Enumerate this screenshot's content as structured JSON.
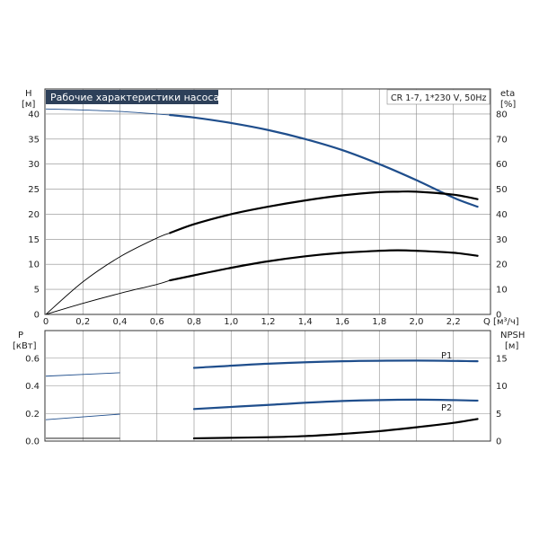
{
  "colors": {
    "blue": "#1f4e8c",
    "black": "#000000",
    "title_bg": "#2d4059",
    "grid": "#8c8c8c"
  },
  "chart_data": [
    {
      "type": "line",
      "panel": "top",
      "title": "Рабочие характеристики насоса",
      "subtitle": "CR 1-7, 1*230 V, 50Hz",
      "xlabel": "Q [м³/ч]",
      "ylabel_left": [
        "H",
        "[м]"
      ],
      "ylabel_right": [
        "eta",
        "[%]"
      ],
      "xlim": [
        0,
        2.4
      ],
      "ylim_left": [
        0,
        45
      ],
      "ylim_right": [
        0,
        90
      ],
      "x_ticks": [
        "0",
        "0,2",
        "0,4",
        "0,6",
        "0,8",
        "1,0",
        "1,2",
        "1,4",
        "1,6",
        "1,8",
        "2,0",
        "2,2",
        "Q [м³/ч]"
      ],
      "y_left_ticks": [
        "0",
        "5",
        "10",
        "15",
        "20",
        "25",
        "30",
        "35",
        "40"
      ],
      "y_right_ticks": [
        "0",
        "10",
        "20",
        "30",
        "40",
        "50",
        "60",
        "70",
        "80"
      ],
      "grid": true,
      "series": [
        {
          "axis": "left",
          "color": "blue",
          "x": [
            0,
            0.2,
            0.4,
            0.6,
            0.67,
            0.8,
            1.0,
            1.2,
            1.4,
            1.6,
            1.8,
            2.0,
            2.2,
            2.33
          ],
          "y": [
            41,
            40.8,
            40.5,
            40.0,
            39.8,
            39.3,
            38.2,
            36.8,
            35.0,
            32.8,
            30.0,
            26.8,
            23.3,
            21.5
          ],
          "solid_from": 0.67
        },
        {
          "axis": "right",
          "color": "black",
          "x": [
            0,
            0.2,
            0.4,
            0.6,
            0.67,
            0.8,
            1.0,
            1.2,
            1.4,
            1.6,
            1.8,
            1.9,
            2.0,
            2.2,
            2.33
          ],
          "y": [
            0,
            13,
            23,
            30.5,
            32.5,
            36,
            40,
            43,
            45.5,
            47.5,
            48.8,
            49.0,
            49.0,
            47.8,
            46.0
          ],
          "solid_from": 0.67
        },
        {
          "axis": "left",
          "color": "black",
          "x": [
            0,
            0.2,
            0.4,
            0.6,
            0.67,
            0.8,
            1.0,
            1.2,
            1.4,
            1.6,
            1.8,
            1.9,
            2.0,
            2.2,
            2.33
          ],
          "y": [
            0,
            2.2,
            4.2,
            6.0,
            6.8,
            7.8,
            9.3,
            10.6,
            11.6,
            12.3,
            12.7,
            12.8,
            12.7,
            12.3,
            11.7
          ],
          "solid_from": 0.67
        }
      ]
    },
    {
      "type": "line",
      "panel": "bottom",
      "ylabel_left": [
        "P",
        "[кВт]"
      ],
      "ylabel_right": [
        "NPSH",
        "[м]"
      ],
      "xlim": [
        0,
        2.4
      ],
      "ylim_left": [
        0,
        0.8
      ],
      "ylim_right": [
        0,
        20
      ],
      "y_left_ticks": [
        "0.0",
        "0.2",
        "0.4",
        "0.6"
      ],
      "y_right_ticks": [
        "0",
        "5",
        "10",
        "15"
      ],
      "grid": true,
      "series": [
        {
          "name": "P1",
          "axis": "left",
          "color": "blue",
          "x": [
            0,
            0.4,
            0.8,
            1.2,
            1.6,
            2.0,
            2.33
          ],
          "y": [
            0.47,
            0.495,
            0.53,
            0.56,
            0.578,
            0.583,
            0.578
          ],
          "solid_from": 0.67
        },
        {
          "name": "P2",
          "axis": "left",
          "color": "blue",
          "x": [
            0,
            0.4,
            0.8,
            1.2,
            1.6,
            2.0,
            2.33
          ],
          "y": [
            0.155,
            0.195,
            0.232,
            0.262,
            0.29,
            0.3,
            0.293
          ],
          "solid_from": 0.67
        },
        {
          "axis": "right",
          "color": "black",
          "x": [
            0,
            0.4,
            0.8,
            1.2,
            1.4,
            1.6,
            1.8,
            2.0,
            2.2,
            2.33
          ],
          "y": [
            0.5,
            0.5,
            0.5,
            0.7,
            0.9,
            1.3,
            1.8,
            2.5,
            3.3,
            4.0
          ],
          "solid_from": 0.67
        }
      ]
    }
  ]
}
